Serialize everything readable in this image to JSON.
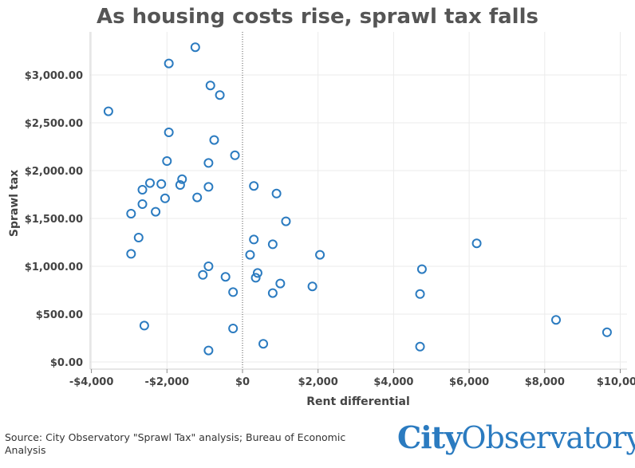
{
  "title": "As housing costs rise, sprawl tax falls",
  "source": "Source: City Observatory \"Sprawl Tax\" analysis; Bureau of Economic Analysis",
  "logo": {
    "part1": "City",
    "part2": "Observatory"
  },
  "colors": {
    "marker": "#2b7bc0",
    "grid": "#ebebeb",
    "axis": "#888888",
    "text": "#444444"
  },
  "chart_data": {
    "type": "scatter",
    "title": "As housing costs rise, sprawl tax falls",
    "xlabel": "Rent differential",
    "ylabel": "Sprawl tax",
    "xlim": [
      -4000,
      10000
    ],
    "ylim": [
      0,
      3300
    ],
    "grid": true,
    "zero_line_x": 0,
    "x_ticks": [
      {
        "value": -4000,
        "label": "-$4,000"
      },
      {
        "value": -2000,
        "label": "-$2,000"
      },
      {
        "value": 0,
        "label": "$0"
      },
      {
        "value": 2000,
        "label": "$2,000"
      },
      {
        "value": 4000,
        "label": "$4,000"
      },
      {
        "value": 6000,
        "label": "$6,000"
      },
      {
        "value": 8000,
        "label": "$8,000"
      },
      {
        "value": 10000,
        "label": "$10,000"
      }
    ],
    "y_ticks": [
      {
        "value": 0,
        "label": "$0.00"
      },
      {
        "value": 500,
        "label": "$500.00"
      },
      {
        "value": 1000,
        "label": "$1,000.00"
      },
      {
        "value": 1500,
        "label": "$1,500.00"
      },
      {
        "value": 2000,
        "label": "$2,000.00"
      },
      {
        "value": 2500,
        "label": "$2,500.00"
      },
      {
        "value": 3000,
        "label": "$3,000.00"
      }
    ],
    "points": [
      {
        "x": -1250,
        "y": 3290
      },
      {
        "x": -1950,
        "y": 3120
      },
      {
        "x": -850,
        "y": 2890
      },
      {
        "x": -600,
        "y": 2790
      },
      {
        "x": -3550,
        "y": 2620
      },
      {
        "x": -1950,
        "y": 2400
      },
      {
        "x": -750,
        "y": 2320
      },
      {
        "x": -200,
        "y": 2160
      },
      {
        "x": -2000,
        "y": 2100
      },
      {
        "x": -900,
        "y": 2080
      },
      {
        "x": -1600,
        "y": 1910
      },
      {
        "x": -2450,
        "y": 1870
      },
      {
        "x": -2150,
        "y": 1860
      },
      {
        "x": -1650,
        "y": 1850
      },
      {
        "x": -900,
        "y": 1830
      },
      {
        "x": 300,
        "y": 1840
      },
      {
        "x": -2650,
        "y": 1800
      },
      {
        "x": 900,
        "y": 1760
      },
      {
        "x": -1200,
        "y": 1720
      },
      {
        "x": -2050,
        "y": 1710
      },
      {
        "x": -2650,
        "y": 1650
      },
      {
        "x": -2300,
        "y": 1570
      },
      {
        "x": -2950,
        "y": 1550
      },
      {
        "x": 1150,
        "y": 1470
      },
      {
        "x": -2750,
        "y": 1300
      },
      {
        "x": 300,
        "y": 1280
      },
      {
        "x": 800,
        "y": 1230
      },
      {
        "x": 6200,
        "y": 1240
      },
      {
        "x": -2950,
        "y": 1130
      },
      {
        "x": 200,
        "y": 1120
      },
      {
        "x": 2050,
        "y": 1120
      },
      {
        "x": -900,
        "y": 1000
      },
      {
        "x": 4750,
        "y": 970
      },
      {
        "x": -1050,
        "y": 910
      },
      {
        "x": 400,
        "y": 930
      },
      {
        "x": -450,
        "y": 890
      },
      {
        "x": 350,
        "y": 880
      },
      {
        "x": 1000,
        "y": 820
      },
      {
        "x": 1850,
        "y": 790
      },
      {
        "x": -250,
        "y": 730
      },
      {
        "x": 800,
        "y": 720
      },
      {
        "x": 4700,
        "y": 710
      },
      {
        "x": 8300,
        "y": 440
      },
      {
        "x": -2600,
        "y": 380
      },
      {
        "x": -250,
        "y": 350
      },
      {
        "x": 9650,
        "y": 310
      },
      {
        "x": 550,
        "y": 190
      },
      {
        "x": 4700,
        "y": 160
      },
      {
        "x": -900,
        "y": 120
      }
    ]
  }
}
